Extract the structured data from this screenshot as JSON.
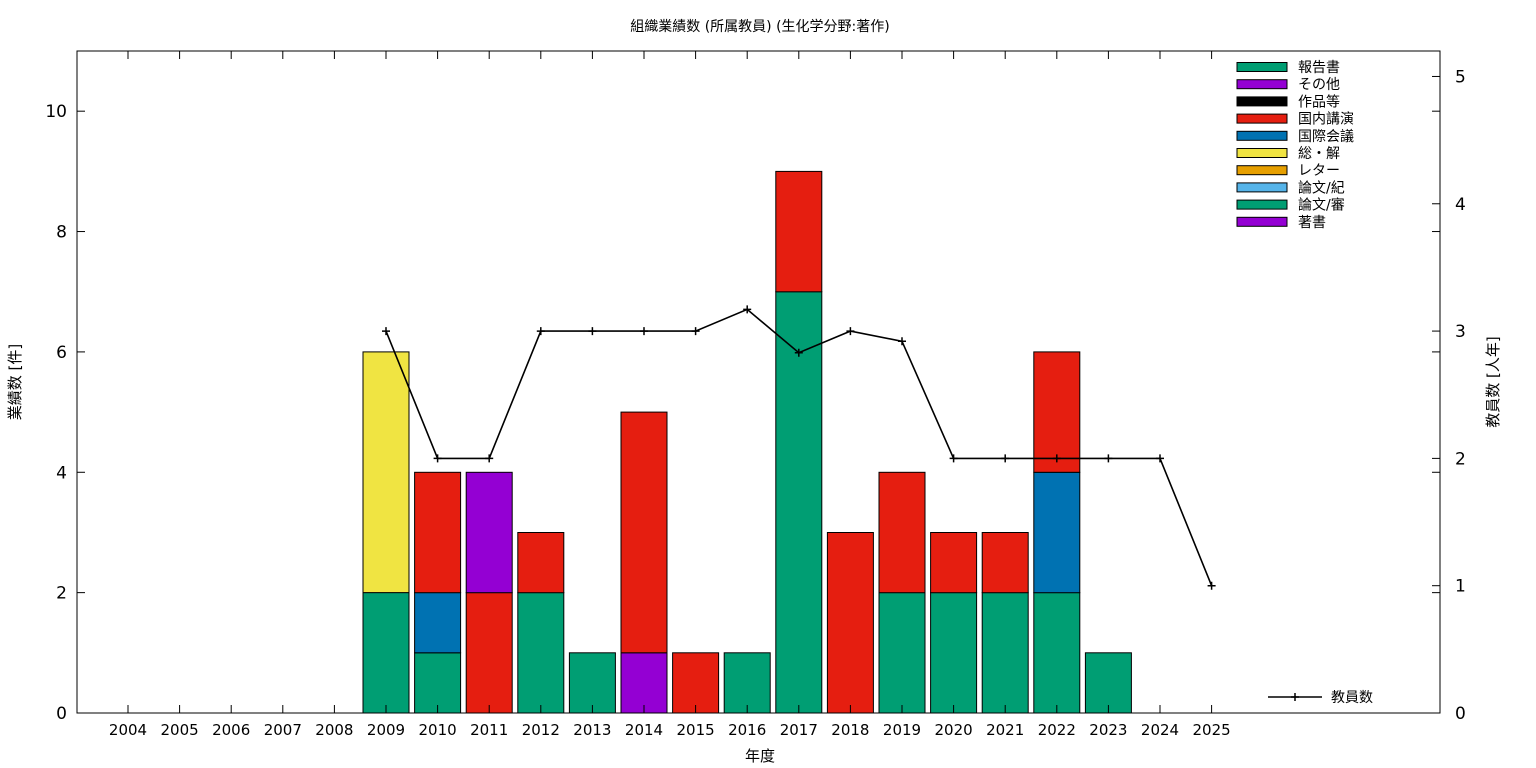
{
  "chart_data": {
    "type": "bar",
    "stacked": true,
    "title": "組織業績数 (所属教員) (生化学分野:著作)",
    "xlabel": "年度",
    "ylabel": "業績数 [件]",
    "y2label": "教員数 [人年]",
    "ylim": [
      0,
      11
    ],
    "y2lim": [
      0,
      5.2
    ],
    "yticks": [
      0,
      2,
      4,
      6,
      8,
      10
    ],
    "y2ticks": [
      0,
      1,
      2,
      3,
      4,
      5
    ],
    "grid": false,
    "legend_position": "top-right",
    "categories": [
      "2004",
      "2005",
      "2006",
      "2007",
      "2008",
      "2009",
      "2010",
      "2011",
      "2012",
      "2013",
      "2014",
      "2015",
      "2016",
      "2017",
      "2018",
      "2019",
      "2020",
      "2021",
      "2022",
      "2023",
      "2024",
      "2025"
    ],
    "series": [
      {
        "name": "著書",
        "color": "#9400d3",
        "values": [
          0,
          0,
          0,
          0,
          0,
          0,
          0,
          0,
          0,
          0,
          1,
          0,
          0,
          0,
          0,
          0,
          0,
          0,
          0,
          0,
          0,
          0
        ]
      },
      {
        "name": "論文/審",
        "color": "#009e73",
        "values": [
          0,
          0,
          0,
          0,
          0,
          2,
          1,
          0,
          2,
          1,
          0,
          0,
          1,
          7,
          0,
          2,
          2,
          2,
          2,
          1,
          0,
          0
        ]
      },
      {
        "name": "論文/紀",
        "color": "#56b4e9",
        "values": [
          0,
          0,
          0,
          0,
          0,
          0,
          0,
          0,
          0,
          0,
          0,
          0,
          0,
          0,
          0,
          0,
          0,
          0,
          0,
          0,
          0,
          0
        ]
      },
      {
        "name": "レター",
        "color": "#e69f00",
        "values": [
          0,
          0,
          0,
          0,
          0,
          0,
          0,
          0,
          0,
          0,
          0,
          0,
          0,
          0,
          0,
          0,
          0,
          0,
          0,
          0,
          0,
          0
        ]
      },
      {
        "name": "総・解",
        "color": "#f0e442",
        "values": [
          0,
          0,
          0,
          0,
          0,
          4,
          0,
          0,
          0,
          0,
          0,
          0,
          0,
          0,
          0,
          0,
          0,
          0,
          0,
          0,
          0,
          0
        ]
      },
      {
        "name": "国際会議",
        "color": "#0072b2",
        "values": [
          0,
          0,
          0,
          0,
          0,
          0,
          1,
          0,
          0,
          0,
          0,
          0,
          0,
          0,
          0,
          0,
          0,
          0,
          2,
          0,
          0,
          0
        ]
      },
      {
        "name": "国内講演",
        "color": "#e51e10",
        "values": [
          0,
          0,
          0,
          0,
          0,
          0,
          2,
          2,
          1,
          0,
          4,
          1,
          0,
          2,
          3,
          2,
          1,
          1,
          2,
          0,
          0,
          0
        ]
      },
      {
        "name": "作品等",
        "color": "#000000",
        "values": [
          0,
          0,
          0,
          0,
          0,
          0,
          0,
          0,
          0,
          0,
          0,
          0,
          0,
          0,
          0,
          0,
          0,
          0,
          0,
          0,
          0,
          0
        ]
      },
      {
        "name": "その他",
        "color": "#9400d3",
        "values": [
          0,
          0,
          0,
          0,
          0,
          0,
          0,
          2,
          0,
          0,
          0,
          0,
          0,
          0,
          0,
          0,
          0,
          0,
          0,
          0,
          0,
          0
        ]
      },
      {
        "name": "報告書",
        "color": "#009e73",
        "values": [
          0,
          0,
          0,
          0,
          0,
          0,
          0,
          0,
          0,
          0,
          0,
          0,
          0,
          0,
          0,
          0,
          0,
          0,
          0,
          0,
          0,
          0
        ]
      }
    ],
    "line_series": {
      "name": "教員数",
      "color": "#000000",
      "axis": "y2",
      "x": [
        "2009",
        "2010",
        "2011",
        "2012",
        "2013",
        "2014",
        "2015",
        "2016",
        "2017",
        "2018",
        "2019",
        "2020",
        "2021",
        "2022",
        "2023",
        "2024",
        "2025"
      ],
      "values": [
        3,
        2,
        2,
        3,
        3,
        3,
        3,
        3.17,
        2.83,
        3,
        2.92,
        2,
        2,
        2,
        2,
        2,
        1
      ]
    }
  }
}
